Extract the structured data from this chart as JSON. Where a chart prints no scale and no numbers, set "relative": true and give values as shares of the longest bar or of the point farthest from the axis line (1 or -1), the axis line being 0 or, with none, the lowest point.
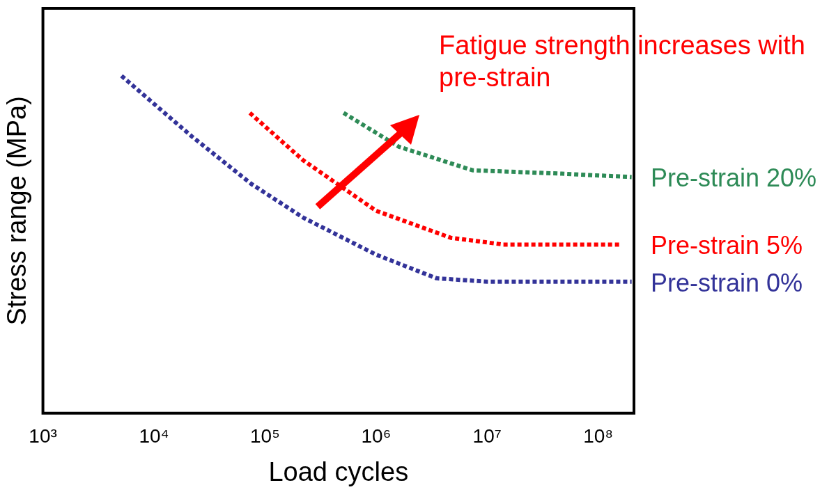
{
  "chart_data": {
    "type": "line",
    "relative": true,
    "log": "x",
    "grid": false,
    "legend": false,
    "marker": "none",
    "line_style": "dotted",
    "xlabel": "Load cycles",
    "ylabel": "Stress range (MPa)",
    "xlim": [
      1000,
      210000000
    ],
    "xticks": [
      {
        "value": 1000,
        "label": "10³"
      },
      {
        "value": 10000,
        "label": "10⁴"
      },
      {
        "value": 100000,
        "label": "10⁵"
      },
      {
        "value": 1000000,
        "label": "10⁶"
      },
      {
        "value": 10000000,
        "label": "10⁷"
      },
      {
        "value": 100000000,
        "label": "10⁸"
      }
    ],
    "annotations": [
      "Fatigue strength increases with pre-strain"
    ],
    "series": [
      {
        "name": "Pre-strain 20%",
        "color": "#2e8b57",
        "x": [
          510000,
          1600000,
          7400000,
          47000000,
          200000000
        ],
        "values": [
          0.89,
          0.79,
          0.72,
          0.71,
          0.7
        ]
      },
      {
        "name": "Pre-strain 5%",
        "color": "#ff0000",
        "x": [
          73000,
          220000,
          1000000,
          4700000,
          14000000,
          160000000
        ],
        "values": [
          0.89,
          0.75,
          0.6,
          0.52,
          0.5,
          0.5
        ]
      },
      {
        "name": "Pre-strain 0%",
        "color": "#333399",
        "x": [
          5100,
          22000,
          75000,
          220000,
          1000000,
          3500000,
          10000000,
          200000000
        ],
        "values": [
          1,
          0.82,
          0.68,
          0.58,
          0.47,
          0.4,
          0.39,
          0.39
        ]
      }
    ]
  }
}
